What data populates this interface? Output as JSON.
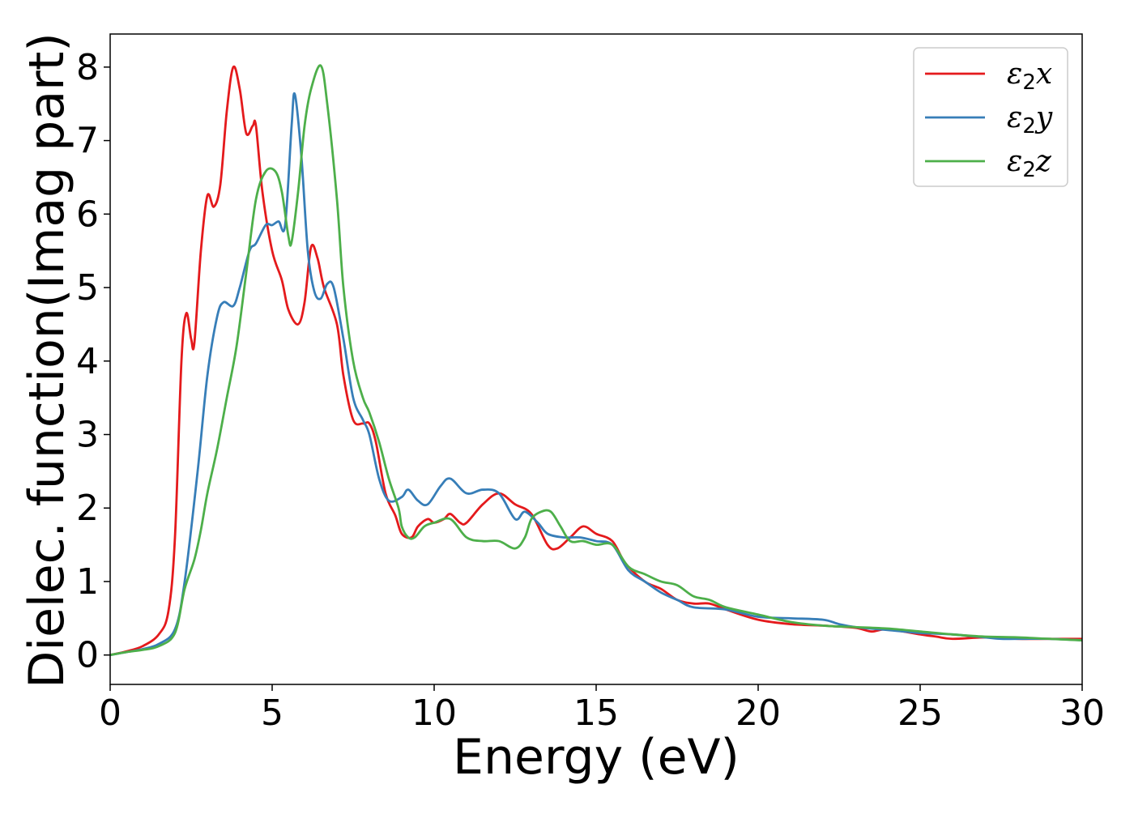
{
  "chart_data": {
    "type": "line",
    "title": "",
    "xlabel": "Energy (eV)",
    "ylabel": "Dielec. function(Imag part)",
    "xlim": [
      0,
      30
    ],
    "ylim": [
      -0.4,
      8.45
    ],
    "xticks": [
      0,
      5,
      10,
      15,
      20,
      25,
      30
    ],
    "yticks": [
      0,
      1,
      2,
      3,
      4,
      5,
      6,
      7,
      8
    ],
    "grid": false,
    "legend_position": "top-right",
    "colors": {
      "x": "#e41a1c",
      "y": "#377eb8",
      "z": "#4daf4a"
    },
    "series": [
      {
        "name": "ε₂x",
        "legend": {
          "symbol": "ε",
          "sub": "2",
          "suffix": "x"
        },
        "color": "#e41a1c",
        "points": [
          [
            0,
            0
          ],
          [
            0.5,
            0.05
          ],
          [
            1.0,
            0.12
          ],
          [
            1.5,
            0.28
          ],
          [
            1.8,
            0.6
          ],
          [
            2.0,
            1.6
          ],
          [
            2.2,
            4.0
          ],
          [
            2.35,
            4.65
          ],
          [
            2.5,
            4.3
          ],
          [
            2.6,
            4.25
          ],
          [
            2.8,
            5.5
          ],
          [
            3.0,
            6.25
          ],
          [
            3.2,
            6.1
          ],
          [
            3.4,
            6.4
          ],
          [
            3.6,
            7.4
          ],
          [
            3.8,
            8.0
          ],
          [
            4.0,
            7.7
          ],
          [
            4.2,
            7.1
          ],
          [
            4.4,
            7.2
          ],
          [
            4.5,
            7.2
          ],
          [
            4.7,
            6.3
          ],
          [
            5.0,
            5.5
          ],
          [
            5.3,
            5.1
          ],
          [
            5.5,
            4.7
          ],
          [
            5.8,
            4.5
          ],
          [
            6.0,
            4.8
          ],
          [
            6.2,
            5.55
          ],
          [
            6.4,
            5.4
          ],
          [
            6.6,
            5.0
          ],
          [
            7.0,
            4.5
          ],
          [
            7.2,
            3.8
          ],
          [
            7.5,
            3.2
          ],
          [
            7.8,
            3.15
          ],
          [
            8.0,
            3.15
          ],
          [
            8.2,
            2.9
          ],
          [
            8.5,
            2.2
          ],
          [
            8.8,
            1.9
          ],
          [
            9.0,
            1.65
          ],
          [
            9.3,
            1.6
          ],
          [
            9.5,
            1.75
          ],
          [
            9.8,
            1.85
          ],
          [
            10.0,
            1.8
          ],
          [
            10.3,
            1.85
          ],
          [
            10.5,
            1.92
          ],
          [
            10.8,
            1.8
          ],
          [
            11.0,
            1.8
          ],
          [
            11.5,
            2.05
          ],
          [
            12.0,
            2.2
          ],
          [
            12.5,
            2.05
          ],
          [
            13.0,
            1.92
          ],
          [
            13.5,
            1.5
          ],
          [
            13.8,
            1.45
          ],
          [
            14.2,
            1.6
          ],
          [
            14.6,
            1.75
          ],
          [
            15.0,
            1.65
          ],
          [
            15.5,
            1.55
          ],
          [
            15.9,
            1.25
          ],
          [
            16.5,
            1.0
          ],
          [
            17.0,
            0.9
          ],
          [
            17.5,
            0.75
          ],
          [
            18.0,
            0.7
          ],
          [
            18.5,
            0.7
          ],
          [
            19.0,
            0.62
          ],
          [
            20.0,
            0.48
          ],
          [
            21.0,
            0.42
          ],
          [
            22.0,
            0.4
          ],
          [
            23.0,
            0.37
          ],
          [
            23.5,
            0.32
          ],
          [
            24.0,
            0.35
          ],
          [
            25.0,
            0.28
          ],
          [
            25.5,
            0.25
          ],
          [
            26.0,
            0.22
          ],
          [
            27.0,
            0.24
          ],
          [
            28.0,
            0.22
          ],
          [
            29.0,
            0.22
          ],
          [
            30.0,
            0.22
          ]
        ]
      },
      {
        "name": "ε₂y",
        "legend": {
          "symbol": "ε",
          "sub": "2",
          "suffix": "y"
        },
        "color": "#377eb8",
        "points": [
          [
            0,
            0
          ],
          [
            0.5,
            0.04
          ],
          [
            1.0,
            0.08
          ],
          [
            1.5,
            0.15
          ],
          [
            2.0,
            0.35
          ],
          [
            2.3,
            1.0
          ],
          [
            2.7,
            2.5
          ],
          [
            3.0,
            3.8
          ],
          [
            3.3,
            4.6
          ],
          [
            3.5,
            4.8
          ],
          [
            3.8,
            4.75
          ],
          [
            4.0,
            5.0
          ],
          [
            4.3,
            5.5
          ],
          [
            4.5,
            5.6
          ],
          [
            4.8,
            5.85
          ],
          [
            5.0,
            5.85
          ],
          [
            5.2,
            5.9
          ],
          [
            5.4,
            5.85
          ],
          [
            5.6,
            7.2
          ],
          [
            5.7,
            7.63
          ],
          [
            5.9,
            6.8
          ],
          [
            6.1,
            5.5
          ],
          [
            6.3,
            4.95
          ],
          [
            6.5,
            4.85
          ],
          [
            6.7,
            5.05
          ],
          [
            6.9,
            5.0
          ],
          [
            7.2,
            4.3
          ],
          [
            7.5,
            3.5
          ],
          [
            7.8,
            3.2
          ],
          [
            8.0,
            3.0
          ],
          [
            8.3,
            2.4
          ],
          [
            8.6,
            2.1
          ],
          [
            9.0,
            2.15
          ],
          [
            9.2,
            2.25
          ],
          [
            9.5,
            2.1
          ],
          [
            9.8,
            2.05
          ],
          [
            10.2,
            2.3
          ],
          [
            10.5,
            2.4
          ],
          [
            11.0,
            2.2
          ],
          [
            11.5,
            2.25
          ],
          [
            12.0,
            2.2
          ],
          [
            12.5,
            1.85
          ],
          [
            12.8,
            1.95
          ],
          [
            13.2,
            1.8
          ],
          [
            13.5,
            1.65
          ],
          [
            14.0,
            1.6
          ],
          [
            14.5,
            1.6
          ],
          [
            15.0,
            1.55
          ],
          [
            15.5,
            1.5
          ],
          [
            16.0,
            1.15
          ],
          [
            16.5,
            1.0
          ],
          [
            17.0,
            0.85
          ],
          [
            17.5,
            0.75
          ],
          [
            18.0,
            0.65
          ],
          [
            19.0,
            0.62
          ],
          [
            20.0,
            0.52
          ],
          [
            21.0,
            0.5
          ],
          [
            22.0,
            0.48
          ],
          [
            22.5,
            0.42
          ],
          [
            23.0,
            0.38
          ],
          [
            24.0,
            0.34
          ],
          [
            25.0,
            0.3
          ],
          [
            26.0,
            0.28
          ],
          [
            27.0,
            0.24
          ],
          [
            27.5,
            0.22
          ],
          [
            28.0,
            0.22
          ],
          [
            29.0,
            0.22
          ],
          [
            30.0,
            0.2
          ]
        ]
      },
      {
        "name": "ε₂z",
        "legend": {
          "symbol": "ε",
          "sub": "2",
          "suffix": "z"
        },
        "color": "#4daf4a",
        "points": [
          [
            0,
            0
          ],
          [
            0.5,
            0.04
          ],
          [
            1.0,
            0.07
          ],
          [
            1.5,
            0.12
          ],
          [
            2.0,
            0.3
          ],
          [
            2.3,
            0.9
          ],
          [
            2.6,
            1.3
          ],
          [
            2.8,
            1.7
          ],
          [
            3.0,
            2.2
          ],
          [
            3.3,
            2.8
          ],
          [
            3.6,
            3.5
          ],
          [
            3.9,
            4.2
          ],
          [
            4.2,
            5.2
          ],
          [
            4.5,
            6.2
          ],
          [
            4.8,
            6.58
          ],
          [
            5.1,
            6.58
          ],
          [
            5.3,
            6.3
          ],
          [
            5.5,
            5.7
          ],
          [
            5.6,
            5.62
          ],
          [
            5.8,
            6.3
          ],
          [
            6.0,
            7.2
          ],
          [
            6.2,
            7.7
          ],
          [
            6.5,
            8.02
          ],
          [
            6.7,
            7.5
          ],
          [
            7.0,
            6.2
          ],
          [
            7.2,
            5.0
          ],
          [
            7.5,
            4.0
          ],
          [
            7.8,
            3.5
          ],
          [
            8.0,
            3.3
          ],
          [
            8.3,
            2.9
          ],
          [
            8.6,
            2.4
          ],
          [
            8.9,
            2.0
          ],
          [
            9.0,
            1.75
          ],
          [
            9.2,
            1.6
          ],
          [
            9.4,
            1.6
          ],
          [
            9.7,
            1.75
          ],
          [
            10.0,
            1.8
          ],
          [
            10.5,
            1.85
          ],
          [
            11.0,
            1.6
          ],
          [
            11.5,
            1.55
          ],
          [
            12.0,
            1.55
          ],
          [
            12.5,
            1.45
          ],
          [
            12.8,
            1.6
          ],
          [
            13.0,
            1.85
          ],
          [
            13.3,
            1.95
          ],
          [
            13.6,
            1.95
          ],
          [
            13.9,
            1.75
          ],
          [
            14.2,
            1.55
          ],
          [
            14.6,
            1.55
          ],
          [
            15.0,
            1.5
          ],
          [
            15.5,
            1.5
          ],
          [
            16.0,
            1.2
          ],
          [
            16.5,
            1.1
          ],
          [
            17.0,
            1.0
          ],
          [
            17.5,
            0.95
          ],
          [
            18.0,
            0.8
          ],
          [
            18.5,
            0.75
          ],
          [
            19.0,
            0.65
          ],
          [
            20.0,
            0.55
          ],
          [
            21.0,
            0.45
          ],
          [
            22.0,
            0.4
          ],
          [
            23.0,
            0.38
          ],
          [
            24.0,
            0.36
          ],
          [
            25.0,
            0.32
          ],
          [
            26.0,
            0.28
          ],
          [
            27.0,
            0.25
          ],
          [
            28.0,
            0.24
          ],
          [
            29.0,
            0.22
          ],
          [
            30.0,
            0.2
          ]
        ]
      }
    ]
  }
}
